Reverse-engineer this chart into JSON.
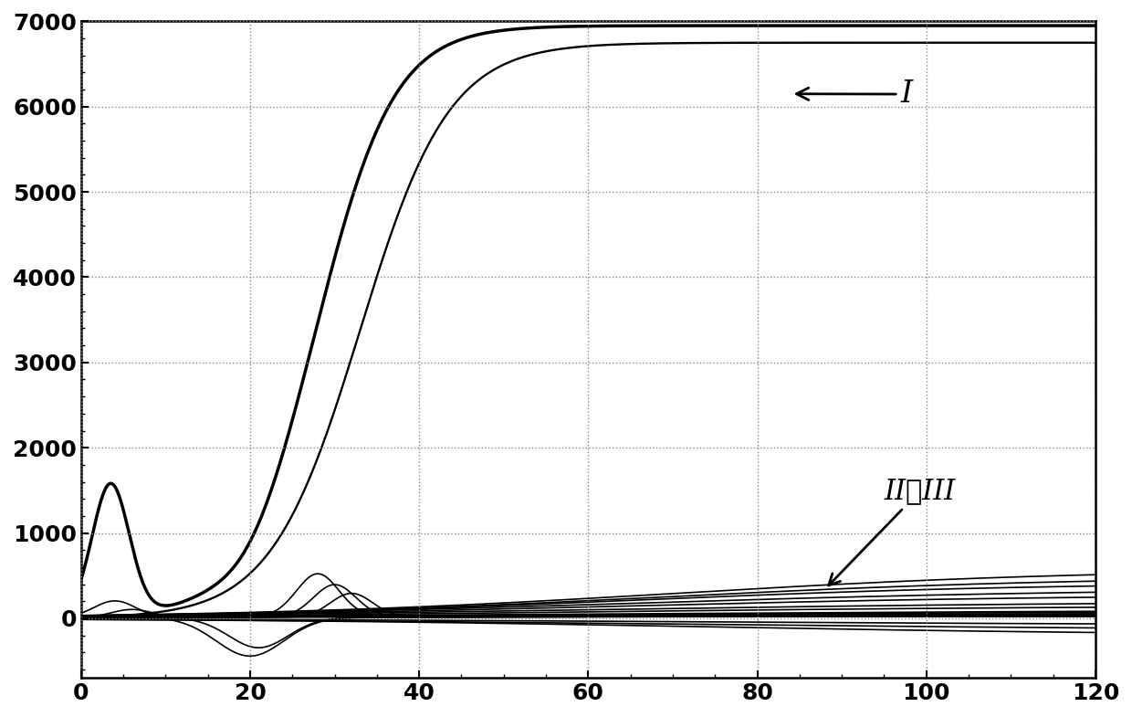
{
  "xlim": [
    0,
    120
  ],
  "ylim": [
    -700,
    7000
  ],
  "yticks": [
    0,
    1000,
    2000,
    3000,
    4000,
    5000,
    6000,
    7000
  ],
  "xticks": [
    0,
    20,
    40,
    60,
    80,
    100,
    120
  ],
  "background_color": "#ffffff",
  "grid_color": "#888888",
  "line_color": "#000000"
}
